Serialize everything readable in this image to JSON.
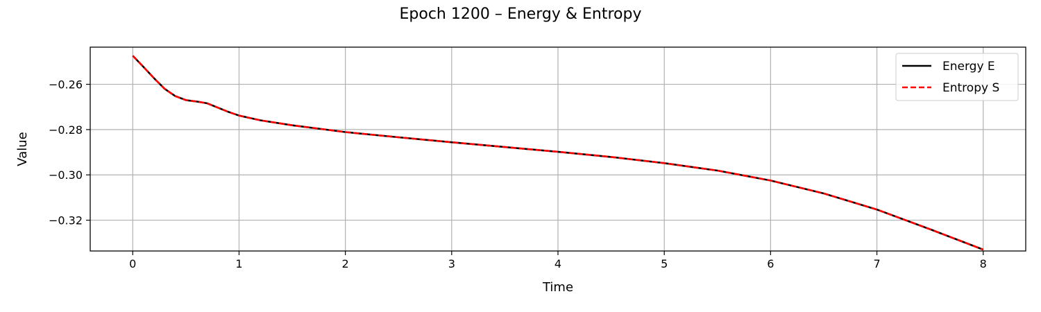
{
  "chart_data": {
    "type": "line",
    "title": "Epoch 1200 – Energy & Entropy",
    "xlabel": "Time",
    "ylabel": "Value",
    "xlim": [
      -0.4,
      8.4
    ],
    "ylim": [
      -0.3336,
      -0.2436
    ],
    "xticks": [
      0,
      1,
      2,
      3,
      4,
      5,
      6,
      7,
      8
    ],
    "xtick_labels": [
      "0",
      "1",
      "2",
      "3",
      "4",
      "5",
      "6",
      "7",
      "8"
    ],
    "yticks": [
      -0.26,
      -0.28,
      -0.3,
      -0.32
    ],
    "ytick_labels": [
      "−0.26",
      "−0.28",
      "−0.30",
      "−0.32"
    ],
    "grid": true,
    "legend_position": "top-right",
    "series": [
      {
        "name": "Energy E",
        "color": "#000000",
        "style": "solid",
        "x": [
          0,
          0.1,
          0.2,
          0.3,
          0.4,
          0.5,
          0.6,
          0.7,
          0.8,
          0.9,
          1.0,
          1.2,
          1.5,
          2.0,
          2.5,
          3.0,
          3.5,
          4.0,
          4.5,
          5.0,
          5.5,
          6.0,
          6.5,
          7.0,
          7.5,
          8.0
        ],
        "y": [
          -0.2474,
          -0.2523,
          -0.2573,
          -0.262,
          -0.2652,
          -0.267,
          -0.2676,
          -0.2684,
          -0.2703,
          -0.2722,
          -0.2738,
          -0.2759,
          -0.2781,
          -0.2811,
          -0.2834,
          -0.2856,
          -0.2877,
          -0.2898,
          -0.2921,
          -0.2948,
          -0.2981,
          -0.3025,
          -0.3082,
          -0.3153,
          -0.324,
          -0.333
        ]
      },
      {
        "name": "Entropy S",
        "color": "#ff0000",
        "style": "dashed",
        "x": [
          0,
          0.1,
          0.2,
          0.3,
          0.4,
          0.5,
          0.6,
          0.7,
          0.8,
          0.9,
          1.0,
          1.2,
          1.5,
          2.0,
          2.5,
          3.0,
          3.5,
          4.0,
          4.5,
          5.0,
          5.5,
          6.0,
          6.5,
          7.0,
          7.5,
          8.0
        ],
        "y": [
          -0.2474,
          -0.2523,
          -0.2573,
          -0.262,
          -0.2652,
          -0.267,
          -0.2676,
          -0.2684,
          -0.2703,
          -0.2722,
          -0.2738,
          -0.2759,
          -0.2781,
          -0.2811,
          -0.2834,
          -0.2856,
          -0.2877,
          -0.2898,
          -0.2921,
          -0.2948,
          -0.2981,
          -0.3025,
          -0.3082,
          -0.3153,
          -0.324,
          -0.333
        ]
      }
    ]
  }
}
